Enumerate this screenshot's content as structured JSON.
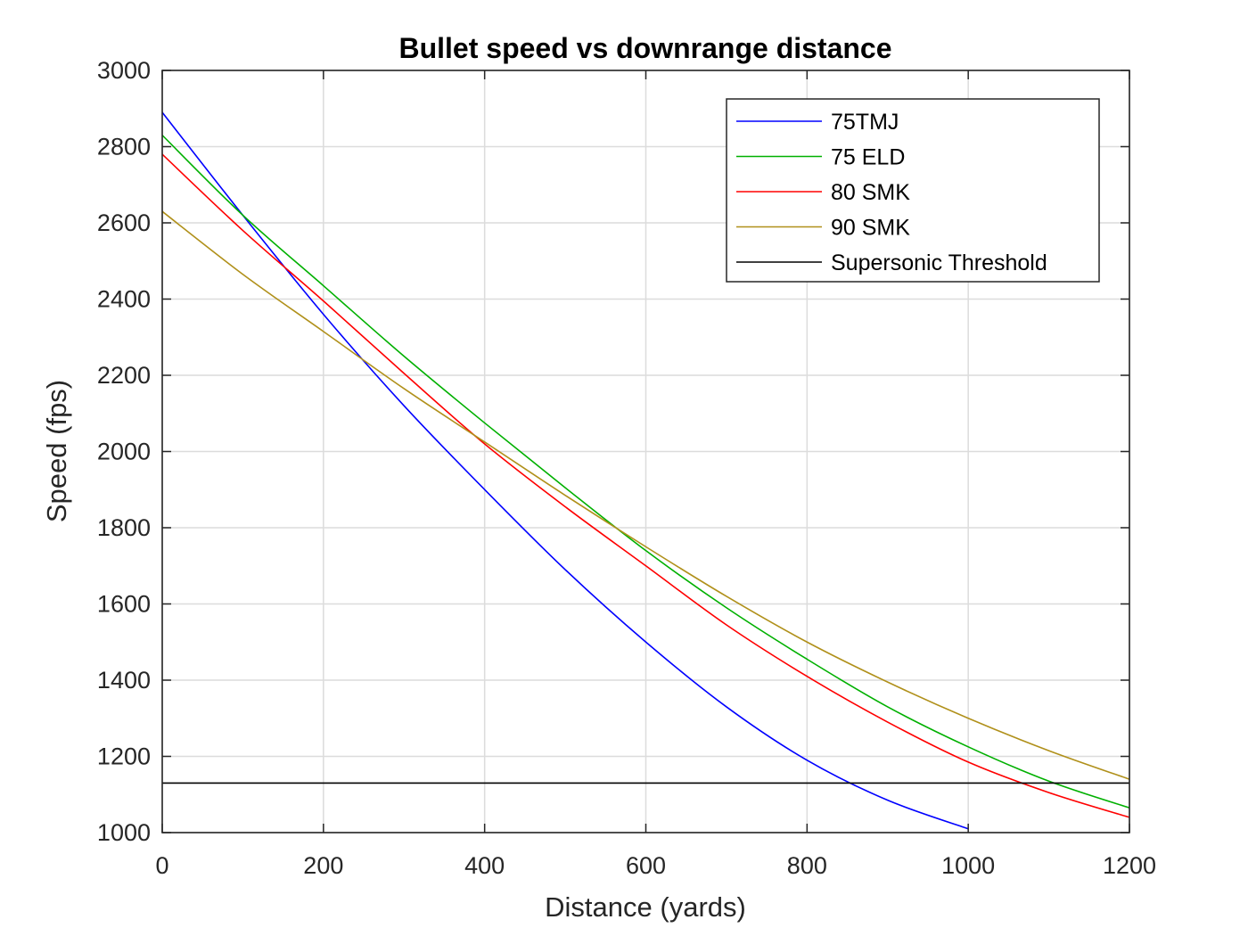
{
  "chart_data": {
    "type": "line",
    "title": "Bullet speed vs downrange distance",
    "xlabel": "Distance (yards)",
    "ylabel": "Speed (fps)",
    "xlim": [
      0,
      1200
    ],
    "ylim": [
      1000,
      3000
    ],
    "xticks": [
      "0",
      "200",
      "400",
      "600",
      "800",
      "1000",
      "1200"
    ],
    "yticks": [
      "1000",
      "1200",
      "1400",
      "1600",
      "1800",
      "2000",
      "2200",
      "2400",
      "2600",
      "2800",
      "3000"
    ],
    "grid": true,
    "legend_position": "top-right",
    "x": [
      0,
      100,
      200,
      300,
      400,
      500,
      600,
      700,
      800,
      900,
      1000,
      1100,
      1200
    ],
    "series": [
      {
        "name": "75TMJ",
        "color": "#0000ff",
        "values": [
          2890,
          2620,
          2360,
          2120,
          1900,
          1690,
          1500,
          1330,
          1190,
          1085,
          1010,
          null,
          null
        ]
      },
      {
        "name": "75 ELD",
        "color": "#00b000",
        "values": [
          2830,
          2620,
          2435,
          2250,
          2075,
          1905,
          1740,
          1590,
          1455,
          1330,
          1225,
          1135,
          1065
        ]
      },
      {
        "name": "80 SMK",
        "color": "#ff0000",
        "values": [
          2780,
          2580,
          2395,
          2205,
          2020,
          1855,
          1700,
          1545,
          1410,
          1290,
          1185,
          1105,
          1040
        ]
      },
      {
        "name": "90 SMK",
        "color": "#b0901a",
        "values": [
          2630,
          2465,
          2315,
          2165,
          2025,
          1885,
          1750,
          1620,
          1500,
          1395,
          1300,
          1215,
          1140
        ]
      },
      {
        "name": "Supersonic Threshold",
        "color": "#000000",
        "values": [
          1130,
          1130,
          1130,
          1130,
          1130,
          1130,
          1130,
          1130,
          1130,
          1130,
          1130,
          1130,
          1130
        ]
      }
    ]
  }
}
